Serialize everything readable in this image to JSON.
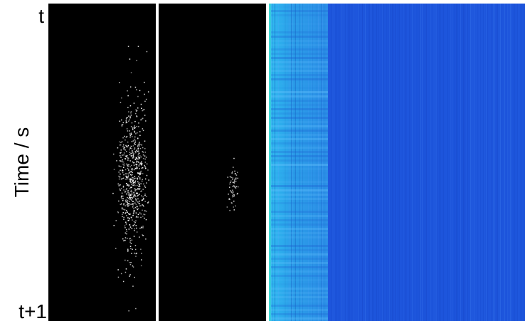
{
  "labels": {
    "top": "t",
    "axis": "Time / s",
    "bottom": "t+1"
  }
}
